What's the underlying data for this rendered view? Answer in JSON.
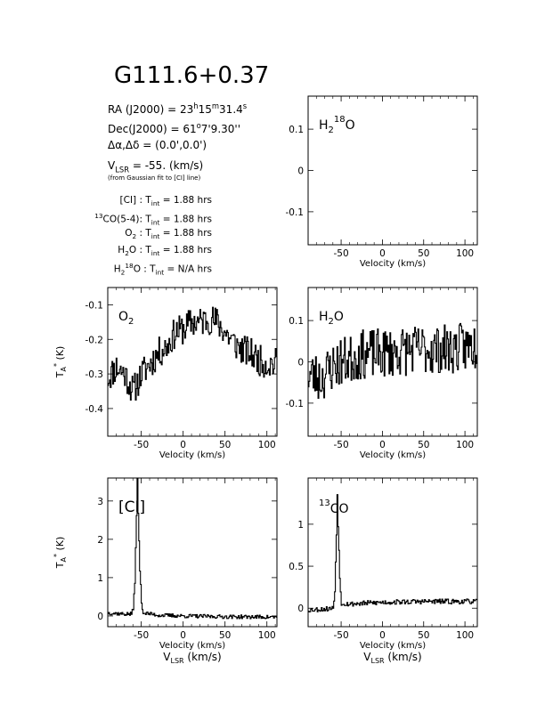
{
  "header": {
    "title": "G111.6+0.37",
    "ra": {
      "pre": "RA (J2000) = 23",
      "h": "h",
      "m_val": "15",
      "m": "m",
      "s_val": "31.4",
      "s": "s"
    },
    "dec": {
      "pre": "Dec(J2000) = 61",
      "deg": "o",
      "rest": "7'9.30''"
    },
    "offset": "Δα,Δδ = (0.0',0.0')",
    "vlsr": {
      "pre": "V",
      "sub": "LSR",
      "rest": " = -55. (km/s)"
    },
    "vlsr_note": "(from Gaussian fit to [CI] line)",
    "tint_rows": [
      {
        "pre": "",
        "sup": "",
        "label": "[CI] : T",
        "sub": "int",
        "value": " = 1.88 hrs"
      },
      {
        "pre": "",
        "sup": "13",
        "label": "CO(5-4): T",
        "sub": "int",
        "value": " = 1.88 hrs"
      },
      {
        "pre": "O",
        "sup": "",
        "label": "",
        "sub": "2",
        "value": " : T"
      },
      {
        "pre": "H",
        "sup": "",
        "label": "",
        "sub": "2",
        "value": "O : T"
      },
      {
        "pre": "H",
        "sup": "18",
        "label": "",
        "sub": "2",
        "value": "O : T"
      }
    ],
    "tint_tail": [
      " = 1.88 hrs",
      " = 1.88 hrs",
      " = N/A hrs"
    ]
  },
  "chart_data": [
    {
      "id": "h2o18",
      "type": "line",
      "label": "H218O",
      "label_parts": [
        "H",
        "2",
        "18",
        "O"
      ],
      "xlabel": "Velocity (km/s)",
      "ylabel": "",
      "xlim": [
        -90,
        115
      ],
      "ylim": [
        -0.18,
        0.18
      ],
      "xticks": [
        -50,
        0,
        50,
        100
      ],
      "yticks": [
        -0.1,
        0,
        0.1
      ],
      "ytick_labels": [
        "-0.1",
        "0",
        "0.1"
      ],
      "series": []
    },
    {
      "id": "o2",
      "type": "line",
      "label": "O2",
      "label_parts": [
        "O",
        "2"
      ],
      "xlabel": "Velocity (km/s)",
      "ylabel": "T_A* (K)",
      "xlim": [
        -90,
        112
      ],
      "ylim": [
        -0.48,
        -0.05
      ],
      "xticks": [
        -50,
        0,
        50,
        100
      ],
      "yticks": [
        -0.4,
        -0.3,
        -0.2,
        -0.1
      ],
      "ytick_labels": [
        "-0.4",
        "-0.3",
        "-0.2",
        "-0.1"
      ],
      "series": [
        {
          "values_profile": [
            [
              -90,
              -0.31
            ],
            [
              -80,
              -0.28
            ],
            [
              -70,
              -0.3
            ],
            [
              -60,
              -0.35
            ],
            [
              -50,
              -0.3
            ],
            [
              -40,
              -0.27
            ],
            [
              -30,
              -0.24
            ],
            [
              -20,
              -0.22
            ],
            [
              -10,
              -0.18
            ],
            [
              0,
              -0.17
            ],
            [
              10,
              -0.15
            ],
            [
              20,
              -0.15
            ],
            [
              30,
              -0.14
            ],
            [
              40,
              -0.15
            ],
            [
              50,
              -0.18
            ],
            [
              60,
              -0.21
            ],
            [
              70,
              -0.23
            ],
            [
              80,
              -0.24
            ],
            [
              90,
              -0.26
            ],
            [
              100,
              -0.27
            ],
            [
              112,
              -0.27
            ]
          ],
          "noise": 0.045,
          "step": 1.0,
          "seed": 11
        }
      ]
    },
    {
      "id": "h2o",
      "type": "line",
      "label": "H2O",
      "label_parts": [
        "H",
        "2",
        "",
        "O"
      ],
      "xlabel": "Velocity (km/s)",
      "ylabel": "",
      "xlim": [
        -90,
        115
      ],
      "ylim": [
        -0.18,
        0.18
      ],
      "xticks": [
        -50,
        0,
        50,
        100
      ],
      "yticks": [
        -0.1,
        0,
        0.1
      ],
      "ytick_labels": [
        "-0.1",
        "0",
        "0.1"
      ],
      "series": [
        {
          "values_profile": [
            [
              -90,
              -0.03
            ],
            [
              -75,
              -0.04
            ],
            [
              -60,
              -0.01
            ],
            [
              -50,
              0.0
            ],
            [
              -20,
              0.02
            ],
            [
              0,
              0.02
            ],
            [
              40,
              0.03
            ],
            [
              80,
              0.03
            ],
            [
              115,
              0.04
            ]
          ],
          "noise": 0.06,
          "step": 1.0,
          "seed": 23
        }
      ]
    },
    {
      "id": "ci",
      "type": "line",
      "label": "[CI]",
      "label_parts": [
        "[CI]"
      ],
      "xlabel": "Velocity (km/s)",
      "xlabel2": "V_LSR (km/s)",
      "ylabel": "T_A* (K)",
      "xlim": [
        -90,
        112
      ],
      "ylim": [
        -0.28,
        3.6
      ],
      "xticks": [
        -50,
        0,
        50,
        100
      ],
      "yticks": [
        0,
        1,
        2,
        3
      ],
      "ytick_labels": [
        "0",
        "1",
        "2",
        "3"
      ],
      "series": [
        {
          "values_profile": [
            [
              -90,
              0.08
            ],
            [
              -70,
              0.05
            ],
            [
              -62,
              0.05
            ],
            [
              -60,
              0.2
            ],
            [
              -58,
              0.9
            ],
            [
              -56,
              2.6
            ],
            [
              -55,
              3.55
            ],
            [
              -54,
              2.7
            ],
            [
              -52,
              1.2
            ],
            [
              -50,
              0.35
            ],
            [
              -48,
              0.08
            ],
            [
              -30,
              0.02
            ],
            [
              0,
              0.0
            ],
            [
              50,
              -0.02
            ],
            [
              112,
              -0.03
            ]
          ],
          "noise": 0.05,
          "step": 1.0,
          "seed": 37
        }
      ]
    },
    {
      "id": "co13",
      "type": "line",
      "label": "13CO",
      "label_parts": [
        "",
        "",
        "13",
        "CO"
      ],
      "xlabel": "Velocity (km/s)",
      "xlabel2": "V_LSR (km/s)",
      "ylabel": "",
      "xlim": [
        -90,
        115
      ],
      "ylim": [
        -0.22,
        1.55
      ],
      "xticks": [
        -50,
        0,
        50,
        100
      ],
      "yticks": [
        0,
        0.5,
        1
      ],
      "ytick_labels": [
        "0",
        "0.5",
        "1"
      ],
      "series": [
        {
          "values_profile": [
            [
              -90,
              -0.02
            ],
            [
              -70,
              -0.01
            ],
            [
              -60,
              0.0
            ],
            [
              -58,
              0.2
            ],
            [
              -56,
              0.9
            ],
            [
              -55,
              1.35
            ],
            [
              -54,
              1.0
            ],
            [
              -52,
              0.35
            ],
            [
              -50,
              0.06
            ],
            [
              -40,
              0.05
            ],
            [
              0,
              0.07
            ],
            [
              50,
              0.08
            ],
            [
              115,
              0.08
            ]
          ],
          "noise": 0.03,
          "step": 1.0,
          "seed": 53
        }
      ]
    }
  ]
}
